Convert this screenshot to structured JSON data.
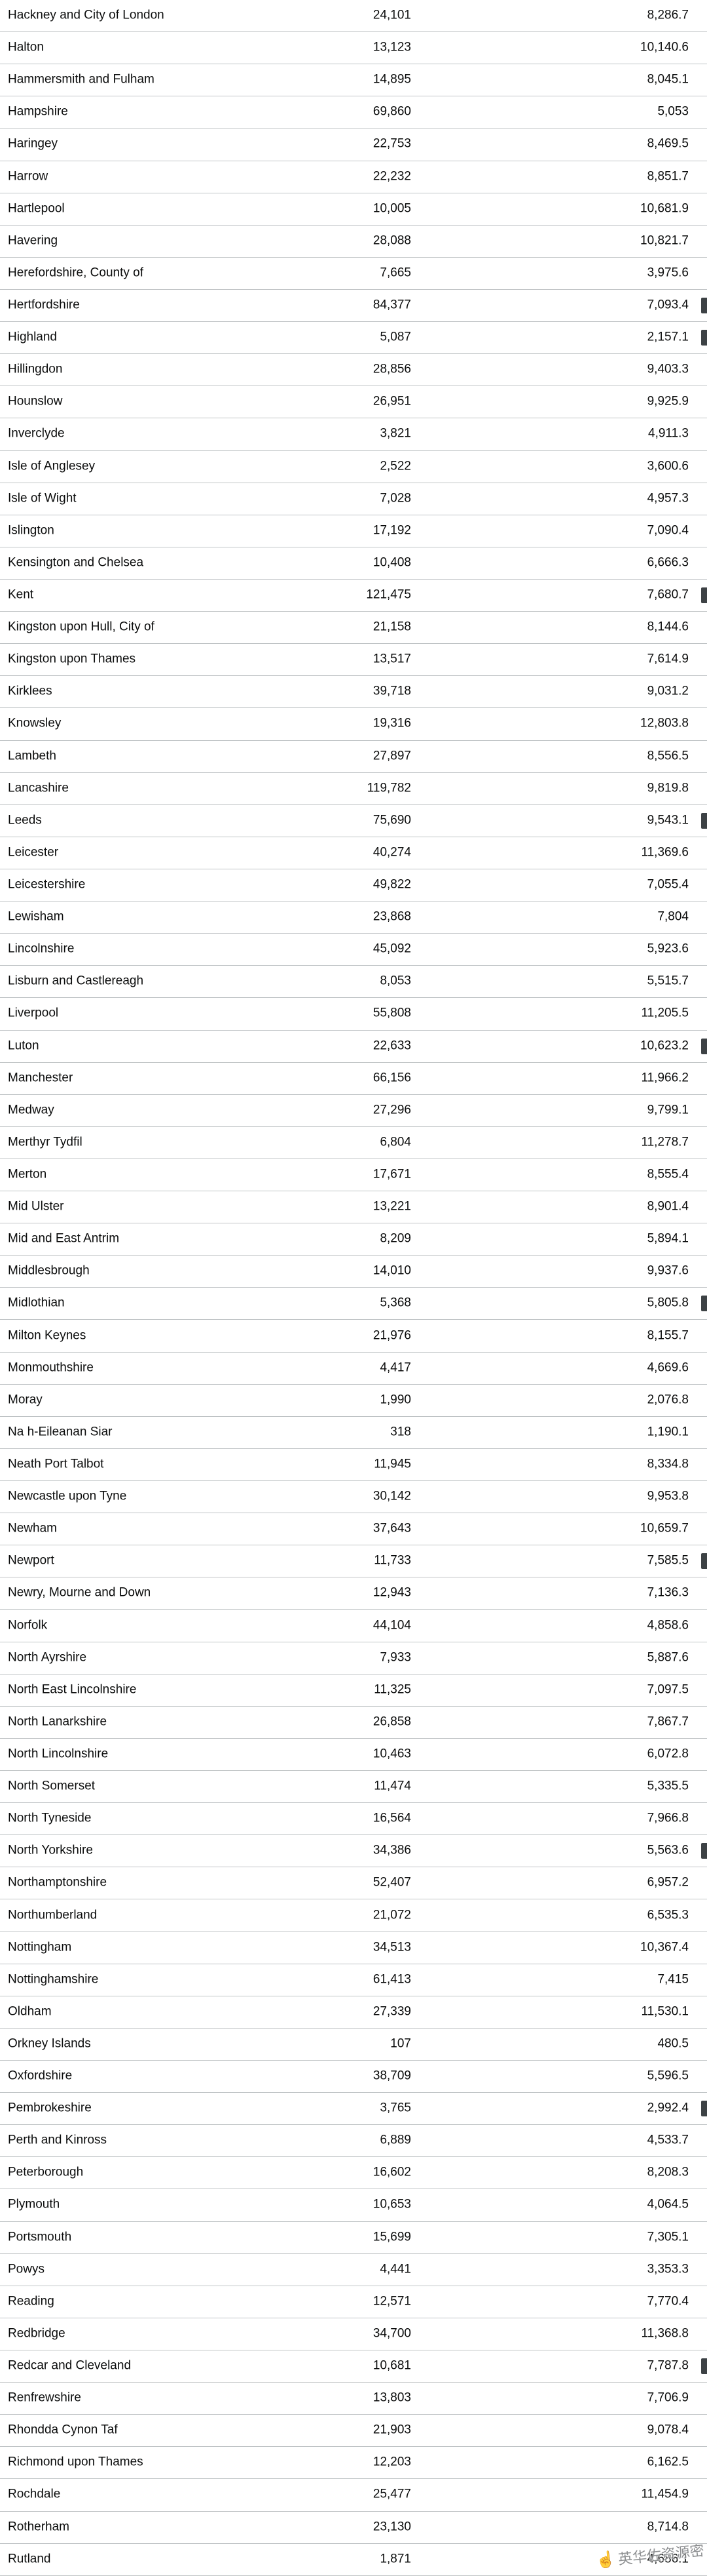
{
  "table": {
    "rows": [
      {
        "name": "Hackney and City of London",
        "cases": "24,101",
        "rate": "8,286.7",
        "scrollbar_mark": false
      },
      {
        "name": "Halton",
        "cases": "13,123",
        "rate": "10,140.6",
        "scrollbar_mark": false
      },
      {
        "name": "Hammersmith and Fulham",
        "cases": "14,895",
        "rate": "8,045.1",
        "scrollbar_mark": false
      },
      {
        "name": "Hampshire",
        "cases": "69,860",
        "rate": "5,053",
        "scrollbar_mark": false
      },
      {
        "name": "Haringey",
        "cases": "22,753",
        "rate": "8,469.5",
        "scrollbar_mark": false
      },
      {
        "name": "Harrow",
        "cases": "22,232",
        "rate": "8,851.7",
        "scrollbar_mark": false
      },
      {
        "name": "Hartlepool",
        "cases": "10,005",
        "rate": "10,681.9",
        "scrollbar_mark": false
      },
      {
        "name": "Havering",
        "cases": "28,088",
        "rate": "10,821.7",
        "scrollbar_mark": false
      },
      {
        "name": "Herefordshire, County of",
        "cases": "7,665",
        "rate": "3,975.6",
        "scrollbar_mark": false
      },
      {
        "name": "Hertfordshire",
        "cases": "84,377",
        "rate": "7,093.4",
        "scrollbar_mark": true
      },
      {
        "name": "Highland",
        "cases": "5,087",
        "rate": "2,157.1",
        "scrollbar_mark": true
      },
      {
        "name": "Hillingdon",
        "cases": "28,856",
        "rate": "9,403.3",
        "scrollbar_mark": false
      },
      {
        "name": "Hounslow",
        "cases": "26,951",
        "rate": "9,925.9",
        "scrollbar_mark": false
      },
      {
        "name": "Inverclyde",
        "cases": "3,821",
        "rate": "4,911.3",
        "scrollbar_mark": false
      },
      {
        "name": "Isle of Anglesey",
        "cases": "2,522",
        "rate": "3,600.6",
        "scrollbar_mark": false
      },
      {
        "name": "Isle of Wight",
        "cases": "7,028",
        "rate": "4,957.3",
        "scrollbar_mark": false
      },
      {
        "name": "Islington",
        "cases": "17,192",
        "rate": "7,090.4",
        "scrollbar_mark": false
      },
      {
        "name": "Kensington and Chelsea",
        "cases": "10,408",
        "rate": "6,666.3",
        "scrollbar_mark": false
      },
      {
        "name": "Kent",
        "cases": "121,475",
        "rate": "7,680.7",
        "scrollbar_mark": true
      },
      {
        "name": "Kingston upon Hull, City of",
        "cases": "21,158",
        "rate": "8,144.6",
        "scrollbar_mark": false
      },
      {
        "name": "Kingston upon Thames",
        "cases": "13,517",
        "rate": "7,614.9",
        "scrollbar_mark": false
      },
      {
        "name": "Kirklees",
        "cases": "39,718",
        "rate": "9,031.2",
        "scrollbar_mark": false
      },
      {
        "name": "Knowsley",
        "cases": "19,316",
        "rate": "12,803.8",
        "scrollbar_mark": false
      },
      {
        "name": "Lambeth",
        "cases": "27,897",
        "rate": "8,556.5",
        "scrollbar_mark": false
      },
      {
        "name": "Lancashire",
        "cases": "119,782",
        "rate": "9,819.8",
        "scrollbar_mark": false
      },
      {
        "name": "Leeds",
        "cases": "75,690",
        "rate": "9,543.1",
        "scrollbar_mark": true
      },
      {
        "name": "Leicester",
        "cases": "40,274",
        "rate": "11,369.6",
        "scrollbar_mark": false
      },
      {
        "name": "Leicestershire",
        "cases": "49,822",
        "rate": "7,055.4",
        "scrollbar_mark": false
      },
      {
        "name": "Lewisham",
        "cases": "23,868",
        "rate": "7,804",
        "scrollbar_mark": false
      },
      {
        "name": "Lincolnshire",
        "cases": "45,092",
        "rate": "5,923.6",
        "scrollbar_mark": false
      },
      {
        "name": "Lisburn and Castlereagh",
        "cases": "8,053",
        "rate": "5,515.7",
        "scrollbar_mark": false
      },
      {
        "name": "Liverpool",
        "cases": "55,808",
        "rate": "11,205.5",
        "scrollbar_mark": false
      },
      {
        "name": "Luton",
        "cases": "22,633",
        "rate": "10,623.2",
        "scrollbar_mark": true
      },
      {
        "name": "Manchester",
        "cases": "66,156",
        "rate": "11,966.2",
        "scrollbar_mark": false
      },
      {
        "name": "Medway",
        "cases": "27,296",
        "rate": "9,799.1",
        "scrollbar_mark": false
      },
      {
        "name": "Merthyr Tydfil",
        "cases": "6,804",
        "rate": "11,278.7",
        "scrollbar_mark": false
      },
      {
        "name": "Merton",
        "cases": "17,671",
        "rate": "8,555.4",
        "scrollbar_mark": false
      },
      {
        "name": "Mid Ulster",
        "cases": "13,221",
        "rate": "8,901.4",
        "scrollbar_mark": false
      },
      {
        "name": "Mid and East Antrim",
        "cases": "8,209",
        "rate": "5,894.1",
        "scrollbar_mark": false
      },
      {
        "name": "Middlesbrough",
        "cases": "14,010",
        "rate": "9,937.6",
        "scrollbar_mark": false
      },
      {
        "name": "Midlothian",
        "cases": "5,368",
        "rate": "5,805.8",
        "scrollbar_mark": true
      },
      {
        "name": "Milton Keynes",
        "cases": "21,976",
        "rate": "8,155.7",
        "scrollbar_mark": false
      },
      {
        "name": "Monmouthshire",
        "cases": "4,417",
        "rate": "4,669.6",
        "scrollbar_mark": false
      },
      {
        "name": "Moray",
        "cases": "1,990",
        "rate": "2,076.8",
        "scrollbar_mark": false
      },
      {
        "name": "Na h-Eileanan Siar",
        "cases": "318",
        "rate": "1,190.1",
        "scrollbar_mark": false
      },
      {
        "name": "Neath Port Talbot",
        "cases": "11,945",
        "rate": "8,334.8",
        "scrollbar_mark": false
      },
      {
        "name": "Newcastle upon Tyne",
        "cases": "30,142",
        "rate": "9,953.8",
        "scrollbar_mark": false
      },
      {
        "name": "Newham",
        "cases": "37,643",
        "rate": "10,659.7",
        "scrollbar_mark": false
      },
      {
        "name": "Newport",
        "cases": "11,733",
        "rate": "7,585.5",
        "scrollbar_mark": true
      },
      {
        "name": "Newry, Mourne and Down",
        "cases": "12,943",
        "rate": "7,136.3",
        "scrollbar_mark": false
      },
      {
        "name": "Norfolk",
        "cases": "44,104",
        "rate": "4,858.6",
        "scrollbar_mark": false
      },
      {
        "name": "North Ayrshire",
        "cases": "7,933",
        "rate": "5,887.6",
        "scrollbar_mark": false
      },
      {
        "name": "North East Lincolnshire",
        "cases": "11,325",
        "rate": "7,097.5",
        "scrollbar_mark": false
      },
      {
        "name": "North Lanarkshire",
        "cases": "26,858",
        "rate": "7,867.7",
        "scrollbar_mark": false
      },
      {
        "name": "North Lincolnshire",
        "cases": "10,463",
        "rate": "6,072.8",
        "scrollbar_mark": false
      },
      {
        "name": "North Somerset",
        "cases": "11,474",
        "rate": "5,335.5",
        "scrollbar_mark": false
      },
      {
        "name": "North Tyneside",
        "cases": "16,564",
        "rate": "7,966.8",
        "scrollbar_mark": false
      },
      {
        "name": "North Yorkshire",
        "cases": "34,386",
        "rate": "5,563.6",
        "scrollbar_mark": true
      },
      {
        "name": "Northamptonshire",
        "cases": "52,407",
        "rate": "6,957.2",
        "scrollbar_mark": false
      },
      {
        "name": "Northumberland",
        "cases": "21,072",
        "rate": "6,535.3",
        "scrollbar_mark": false
      },
      {
        "name": "Nottingham",
        "cases": "34,513",
        "rate": "10,367.4",
        "scrollbar_mark": false
      },
      {
        "name": "Nottinghamshire",
        "cases": "61,413",
        "rate": "7,415",
        "scrollbar_mark": false
      },
      {
        "name": "Oldham",
        "cases": "27,339",
        "rate": "11,530.1",
        "scrollbar_mark": false
      },
      {
        "name": "Orkney Islands",
        "cases": "107",
        "rate": "480.5",
        "scrollbar_mark": false
      },
      {
        "name": "Oxfordshire",
        "cases": "38,709",
        "rate": "5,596.5",
        "scrollbar_mark": false
      },
      {
        "name": "Pembrokeshire",
        "cases": "3,765",
        "rate": "2,992.4",
        "scrollbar_mark": true
      },
      {
        "name": "Perth and Kinross",
        "cases": "6,889",
        "rate": "4,533.7",
        "scrollbar_mark": false
      },
      {
        "name": "Peterborough",
        "cases": "16,602",
        "rate": "8,208.3",
        "scrollbar_mark": false
      },
      {
        "name": "Plymouth",
        "cases": "10,653",
        "rate": "4,064.5",
        "scrollbar_mark": false
      },
      {
        "name": "Portsmouth",
        "cases": "15,699",
        "rate": "7,305.1",
        "scrollbar_mark": false
      },
      {
        "name": "Powys",
        "cases": "4,441",
        "rate": "3,353.3",
        "scrollbar_mark": false
      },
      {
        "name": "Reading",
        "cases": "12,571",
        "rate": "7,770.4",
        "scrollbar_mark": false
      },
      {
        "name": "Redbridge",
        "cases": "34,700",
        "rate": "11,368.8",
        "scrollbar_mark": false
      },
      {
        "name": "Redcar and Cleveland",
        "cases": "10,681",
        "rate": "7,787.8",
        "scrollbar_mark": true
      },
      {
        "name": "Renfrewshire",
        "cases": "13,803",
        "rate": "7,706.9",
        "scrollbar_mark": false
      },
      {
        "name": "Rhondda Cynon Taf",
        "cases": "21,903",
        "rate": "9,078.4",
        "scrollbar_mark": false
      },
      {
        "name": "Richmond upon Thames",
        "cases": "12,203",
        "rate": "6,162.5",
        "scrollbar_mark": false
      },
      {
        "name": "Rochdale",
        "cases": "25,477",
        "rate": "11,454.9",
        "scrollbar_mark": false
      },
      {
        "name": "Rotherham",
        "cases": "23,130",
        "rate": "8,714.8",
        "scrollbar_mark": false
      },
      {
        "name": "Rutland",
        "cases": "1,871",
        "rate": "4,686.1",
        "scrollbar_mark": false
      }
    ]
  },
  "watermark": {
    "icon": "pointing-hand-icon",
    "icon_glyph": "☝",
    "text": "英华佐资源密"
  }
}
